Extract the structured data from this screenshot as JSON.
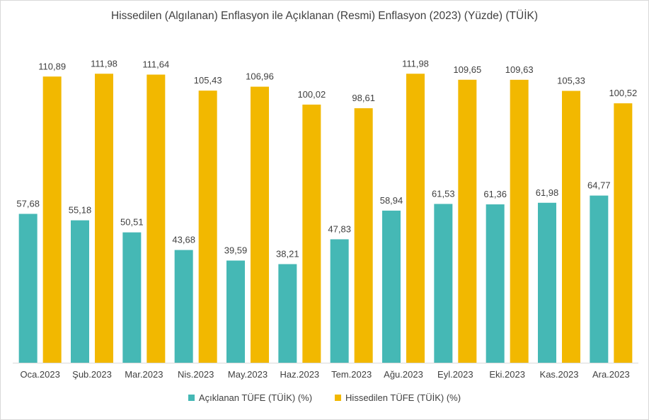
{
  "chart_data": {
    "type": "bar",
    "title": "Hissedilen (Algılanan) Enflasyon ile Açıklanan (Resmi) Enflasyon (2023) (Yüzde) (TÜİK)",
    "categories": [
      "Oca.2023",
      "Şub.2023",
      "Mar.2023",
      "Nis.2023",
      "May.2023",
      "Haz.2023",
      "Tem.2023",
      "Ağu.2023",
      "Eyl.2023",
      "Eki.2023",
      "Kas.2023",
      "Ara.2023"
    ],
    "series": [
      {
        "name": "Açıklanan TÜFE (TÜİK) (%)",
        "color": "#45b8b5",
        "values": [
          57.68,
          55.18,
          50.51,
          43.68,
          39.59,
          38.21,
          47.83,
          58.94,
          61.53,
          61.36,
          61.98,
          64.77
        ],
        "labels": [
          "57,68",
          "55,18",
          "50,51",
          "43,68",
          "39,59",
          "38,21",
          "47,83",
          "58,94",
          "61,53",
          "61,36",
          "61,98",
          "64,77"
        ]
      },
      {
        "name": "Hissedilen TÜFE (TÜİK) (%)",
        "color": "#f2b800",
        "values": [
          110.89,
          111.98,
          111.64,
          105.43,
          106.96,
          100.02,
          98.61,
          111.98,
          109.65,
          109.63,
          105.33,
          100.52
        ],
        "labels": [
          "110,89",
          "111,98",
          "111,64",
          "105,43",
          "106,96",
          "100,02",
          "98,61",
          "111,98",
          "109,65",
          "109,63",
          "105,33",
          "100,52"
        ]
      }
    ],
    "ylim": [
      0,
      120
    ],
    "grid": false,
    "legend_position": "bottom"
  }
}
